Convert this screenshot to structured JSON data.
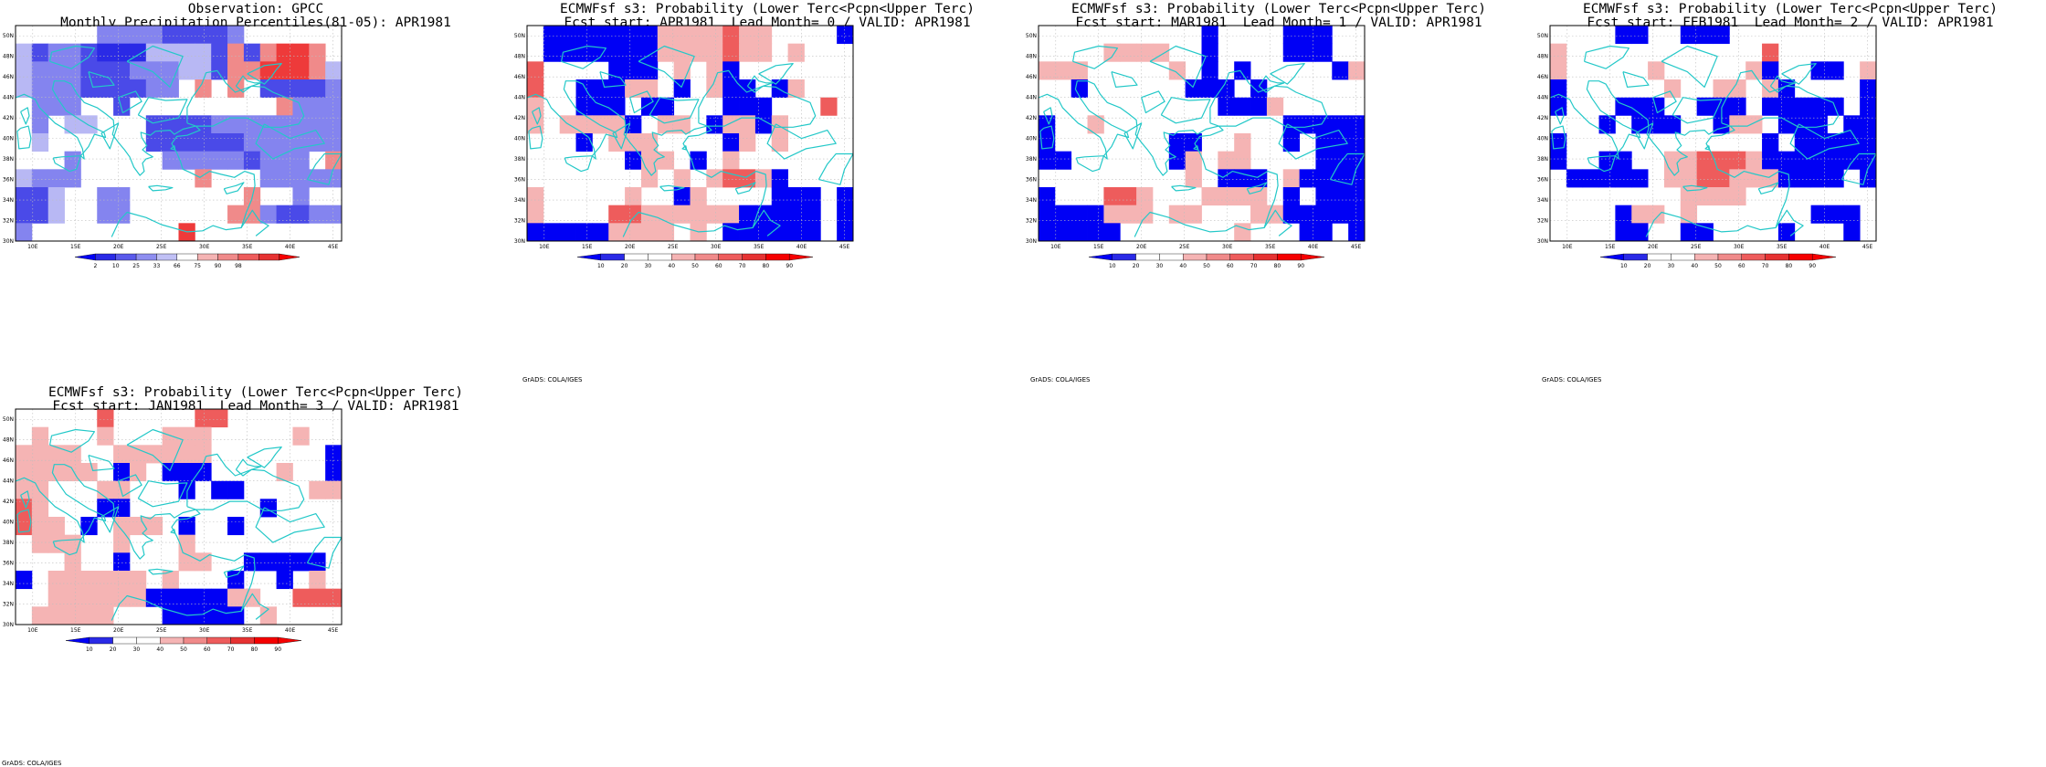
{
  "colors": {
    "coast": "#23c8c8",
    "grid": "#bdbdbd",
    "frame": "#000000"
  },
  "axes": {
    "lat_labels": [
      "30N",
      "32N",
      "34N",
      "36N",
      "38N",
      "40N",
      "42N",
      "44N",
      "46N",
      "48N",
      "50N"
    ],
    "lon_labels": [
      "10E",
      "15E",
      "20E",
      "25E",
      "30E",
      "35E",
      "40E",
      "45E"
    ]
  },
  "credit": "GrADS: COLA/IGES",
  "panels": [
    {
      "title1": "Observation: GPCC",
      "title2": "Monthly Precipitation Percentiles(81-05): APR1981",
      "colorbar": {
        "type": "percentile",
        "labels": [
          "2",
          "10",
          "25",
          "33",
          "66",
          "75",
          "90",
          "98"
        ],
        "colors": [
          "#0000f5",
          "#2a2ae6",
          "#5a5aeb",
          "#8e8ef0",
          "#c0c0f5",
          "#ffffff",
          "#f5b4b4",
          "#f08a8a",
          "#ee5c5c",
          "#e63232",
          "#f50000"
        ]
      },
      "grid": [
        "FFFFFDDDDCCCCDFFFFFF",
        "ECDDCBBBEEEECGCGHHGF",
        "EDDDCCCDDDEECGGHHHGE",
        "EDDDCCCCDDFGFGFCCCCD",
        "FDDDFFCFFFFFFFFFGDDD",
        "FDFEEFFFCCCCDDDDDDDD",
        "FEFFFFFFCCCCCCDDDDDD",
        "FFFDFFFFFDDDDDCDDDFG",
        "EDDDFFFFFFFGFFFDDDDD",
        "CCEFFDDFFFFFFFGFFDFF",
        "CCEFFDDFFFFFFGGDCCDD",
        "DFFFFFFFFFHFFFFFFFFF"
      ]
    },
    {
      "title1": "ECMWFsf s3: Probability (Lower Terc<Pcpn<Upper Terc)",
      "title2": "Fcst start: APR1981  Lead Month= 0 / VALID: APR1981",
      "colorbar": {
        "type": "probability",
        "labels": [
          "10",
          "20",
          "30",
          "40",
          "50",
          "60",
          "70",
          "80",
          "90"
        ],
        "colors": [
          "#0000f5",
          "#2a2ae6",
          "#ffffff",
          "#ffffff",
          "#f5b4b4",
          "#f08a8a",
          "#ee5c5c",
          "#e63232",
          "#f50000",
          "#f50000"
        ]
      },
      "grid": [
        "0CCCCCCCAAAABAA0000C",
        "0CCCCCCCAAAABAA0A000",
        "B0000CCC0A0AC0000000",
        "B00CCCAA0C0ACC0CA000",
        "A00CCC0CC000CCC000B0",
        "A0AAAAC0AA0CAACA0000",
        "000C0AAA0000CA0A0000",
        "000000CAA0C0A0000000",
        "0000000A0A0ABBAC0000",
        "A00000A00CA0000CCC0C",
        "A0000BBAAAAAACCCCC0C",
        "CCCCCAAAA0A0CCCCCC0C"
      ]
    },
    {
      "title1": "ECMWFsf s3: Probability (Lower Terc<Pcpn<Upper Terc)",
      "title2": "Fcst start: MAR1981  Lead Month= 1 / VALID: APR1981",
      "colorbar": {
        "type": "probability",
        "labels": [
          "10",
          "20",
          "30",
          "40",
          "50",
          "60",
          "70",
          "80",
          "90"
        ],
        "colors": [
          "#0000f5",
          "#2a2ae6",
          "#ffffff",
          "#ffffff",
          "#f5b4b4",
          "#f08a8a",
          "#ee5c5c",
          "#e63232",
          "#f50000",
          "#f50000"
        ]
      },
      "grid": [
        "0000000000C0000CCC00",
        "0000AAAA00C0000CCC00",
        "AAA00000A0C0C00000CA",
        "00C000000CCC0C000000",
        "00000000000CCCA00000",
        "C00A00000000000CCCCC",
        "C0000000CC00A00C0CCC",
        "CC000000CA0AA0000CCC",
        "000000000A0CCC0ACCCC",
        "C000BBA000AAAA0C0CCC",
        "CCCCAAA0AA000AACCCCC",
        "CCCCC0000000A000CC0C"
      ]
    },
    {
      "title1": "ECMWFsf s3: Probability (Lower Terc<Pcpn<Upper Terc)",
      "title2": "Fcst start: FEB1981  Lead Month= 2 / VALID: APR1981",
      "colorbar": {
        "type": "probability",
        "labels": [
          "10",
          "20",
          "30",
          "40",
          "50",
          "60",
          "70",
          "80",
          "90"
        ],
        "colors": [
          "#0000f5",
          "#2a2ae6",
          "#ffffff",
          "#ffffff",
          "#f5b4b4",
          "#f08a8a",
          "#ee5c5c",
          "#e63232",
          "#f50000",
          "#f50000"
        ]
      },
      "grid": [
        "0000CC00CCC000000000",
        "A000000000000B000000",
        "A00000A00000AC00CC0A",
        "C000000A00AA0AC0000C",
        "C000CCC00CCC0CCCCC0C",
        "000C0CCC00CAA0CCC0CC",
        "C000000000000C0CCCCC",
        "C00CC00AABBBACCCCCCC",
        "0CCCCC0AABBAAACCCC0C",
        "00000000AAAA00000000",
        "0000CAA0A0000000CCC0",
        "0000CC00CC0000C000C0"
      ]
    },
    {
      "title1": "ECMWFsf s3: Probability (Lower Terc<Pcpn<Upper Terc)",
      "title2": "Fcst start: JAN1981  Lead Month= 3 / VALID: APR1981",
      "colorbar": {
        "type": "probability",
        "labels": [
          "10",
          "20",
          "30",
          "40",
          "50",
          "60",
          "70",
          "80",
          "90"
        ],
        "colors": [
          "#0000f5",
          "#2a2ae6",
          "#ffffff",
          "#ffffff",
          "#f5b4b4",
          "#f08a8a",
          "#ee5c5c",
          "#e63232",
          "#f50000",
          "#f50000"
        ]
      },
      "grid": [
        "00000B00000BB0000000",
        "0A000A000AAA00000A00",
        "AAAA00AAAAAA0000000C",
        "AAAAA0CA0CCC0000A00C",
        "AA000AA000C0CC0000AA",
        "BA000CC00000000C0000",
        "BAA0C0AAA0C00C000000",
        "0AAA00A000A000000000",
        "000A00C000AA00CCCCC0",
        "C0AAAAAA0A000C00C0A0",
        "00AAAAAACCCCCAA00BBB",
        "0AAAAA000CCCCC0A0000"
      ]
    }
  ]
}
